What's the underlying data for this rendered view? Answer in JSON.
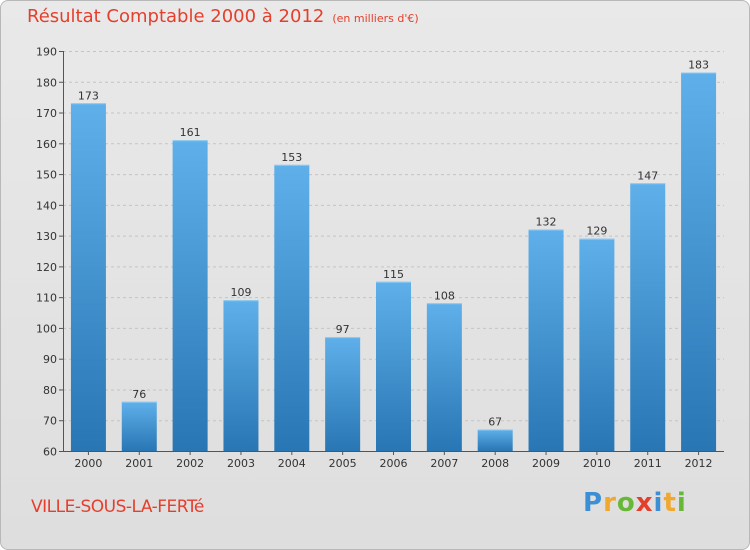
{
  "header": {
    "title": "Résultat Comptable 2000 à 2012",
    "subtitle": "(en milliers d'€)"
  },
  "footer": {
    "commune": "VILLE-SOUS-LA-FERTé",
    "logo_letters": [
      "P",
      "r",
      "o",
      "x",
      "i",
      "t",
      "i"
    ],
    "logo_colors": [
      "#3c8fd4",
      "#f0a830",
      "#68b838",
      "#e53f2c",
      "#3c8fd4",
      "#f0a830",
      "#68b838"
    ]
  },
  "colors": {
    "bar_light": "#5fb0ea",
    "bar_dark": "#2876b4",
    "title": "#e53f2c"
  },
  "chart_data": {
    "type": "bar",
    "title": "Résultat Comptable 2000 à 2012",
    "unit": "en milliers d'€",
    "categories": [
      "2000",
      "2001",
      "2002",
      "2003",
      "2004",
      "2005",
      "2006",
      "2007",
      "2008",
      "2009",
      "2010",
      "2011",
      "2012"
    ],
    "values": [
      173,
      76,
      161,
      109,
      153,
      97,
      115,
      108,
      67,
      132,
      129,
      147,
      183
    ],
    "ylim": [
      60,
      190
    ],
    "yticks": [
      60,
      70,
      80,
      90,
      100,
      110,
      120,
      130,
      140,
      150,
      160,
      170,
      180,
      190
    ],
    "grid": true,
    "xlabel": "",
    "ylabel": ""
  }
}
